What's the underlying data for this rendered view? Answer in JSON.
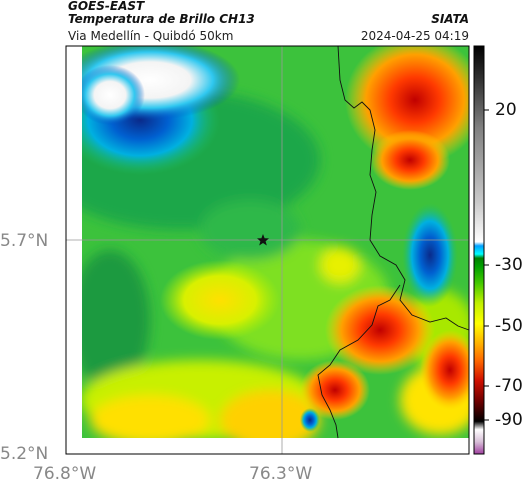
{
  "header": {
    "satellite": "GOES-EAST",
    "variable": "Temperatura de Brillo CH13",
    "route": "Via Medellín - Quibdó 50km",
    "organization": "SIATA",
    "timestamp": "2024-04-25 04:19"
  },
  "map": {
    "lat_labels": [
      "5.7°N",
      "5.2°N"
    ],
    "lon_labels": [
      "76.8°W",
      "76.3°W"
    ],
    "marker": "star-marker"
  },
  "colorbar": {
    "ticks": [
      "20",
      "-30",
      "-50",
      "-70",
      "-90"
    ],
    "palette": [
      "#a040a0",
      "#d8c0d8",
      "#ffffff",
      "#000000",
      "#700000",
      "#d01000",
      "#ff6a00",
      "#ffb000",
      "#ffff00",
      "#c0f000",
      "#40c800",
      "#00a000",
      "#008000",
      "#00ffff",
      "#00a0ff",
      "#ffffff",
      "#c8c8c8",
      "#808080",
      "#303030",
      "#000000"
    ]
  }
}
